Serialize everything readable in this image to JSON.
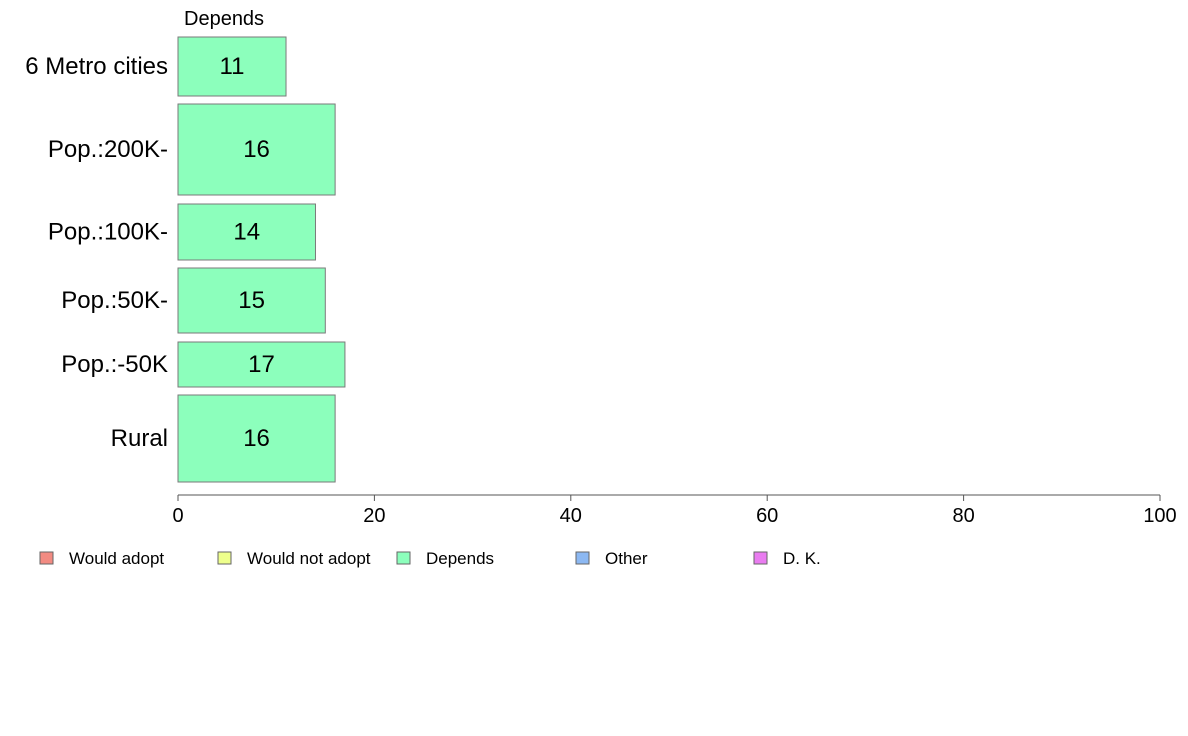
{
  "chart_data": {
    "type": "bar",
    "orientation": "horizontal",
    "panel_title": "Depends",
    "categories": [
      "6 Metro cities",
      "Pop.:200K-",
      "Pop.:100K-",
      "Pop.:50K-",
      "Pop.:-50K",
      "Rural"
    ],
    "series": [
      {
        "name": "Depends",
        "values": [
          11,
          16,
          14,
          15,
          17,
          16
        ],
        "color": "#8cffbc"
      }
    ],
    "xlim": [
      0,
      100
    ],
    "xticks": [
      0,
      20,
      40,
      60,
      80,
      100
    ],
    "legend": {
      "placement": "bottom-left",
      "items": [
        {
          "label": "Would adopt",
          "color": "#f28b82"
        },
        {
          "label": "Would not adopt",
          "color": "#eeff8c"
        },
        {
          "label": "Depends",
          "color": "#8cffbc"
        },
        {
          "label": "Other",
          "color": "#8cb8f2"
        },
        {
          "label": "D. K.",
          "color": "#e97cf0"
        }
      ]
    }
  }
}
